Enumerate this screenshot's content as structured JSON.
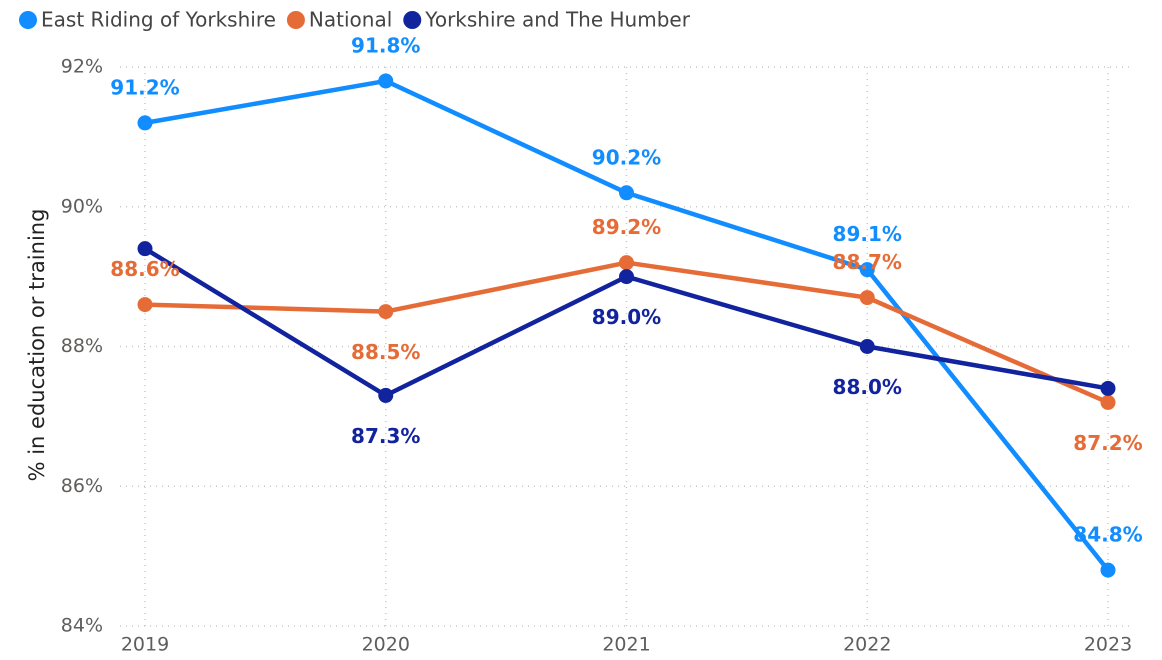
{
  "chart_data": {
    "type": "line",
    "y_label": "% in education or training",
    "categories": [
      "2019",
      "2020",
      "2021",
      "2022",
      "2023"
    ],
    "series": [
      {
        "name": "East Riding of Yorkshire",
        "color": "#118DFF",
        "values": [
          91.2,
          91.8,
          90.2,
          89.1,
          84.8
        ],
        "value_labels": [
          "91.2%",
          "91.8%",
          "90.2%",
          "89.1%",
          "84.8%"
        ]
      },
      {
        "name": "National",
        "color": "#E66C37",
        "values": [
          88.6,
          88.5,
          89.2,
          88.7,
          87.2
        ],
        "value_labels": [
          "88.6%",
          "88.5%",
          "89.2%",
          "88.7%",
          "87.2%"
        ]
      },
      {
        "name": "Yorkshire and The Humber",
        "color": "#12239E",
        "values": [
          89.4,
          87.3,
          89.0,
          88.0,
          87.4
        ],
        "value_labels": [
          null,
          "87.3%",
          "89.0%",
          "88.0%",
          null
        ]
      }
    ],
    "ylim": [
      84,
      92
    ],
    "yticks": [
      {
        "value": 84,
        "label": "84%"
      },
      {
        "value": 86,
        "label": "86%"
      },
      {
        "value": 88,
        "label": "88%"
      },
      {
        "value": 90,
        "label": "90%"
      },
      {
        "value": 92,
        "label": "92%"
      }
    ],
    "grid": true
  }
}
